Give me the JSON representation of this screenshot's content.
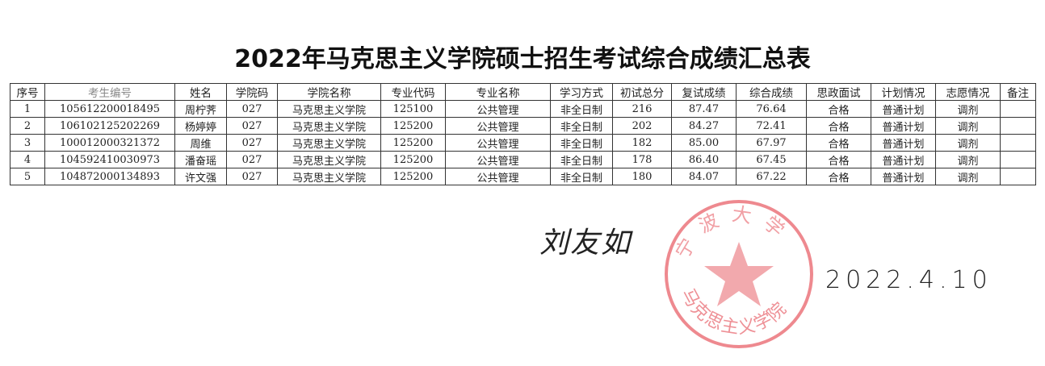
{
  "title": "2022年马克思主义学院硕士招生考试综合成绩汇总表",
  "table": {
    "headers": [
      "序号",
      "考生编号",
      "姓名",
      "学院码",
      "学院名称",
      "专业代码",
      "专业名称",
      "学习方式",
      "初试总分",
      "复试成绩",
      "综合成绩",
      "思政面试",
      "计划情况",
      "志愿情况",
      "备注"
    ],
    "rows": [
      [
        "1",
        "105612200018495",
        "周柠荠",
        "027",
        "马克思主义学院",
        "125100",
        "公共管理",
        "非全日制",
        "216",
        "87.47",
        "76.64",
        "合格",
        "普通计划",
        "调剂",
        ""
      ],
      [
        "2",
        "106102125202269",
        "杨婷婷",
        "027",
        "马克思主义学院",
        "125200",
        "公共管理",
        "非全日制",
        "202",
        "84.27",
        "72.41",
        "合格",
        "普通计划",
        "调剂",
        ""
      ],
      [
        "3",
        "100012000321372",
        "周维",
        "027",
        "马克思主义学院",
        "125200",
        "公共管理",
        "非全日制",
        "182",
        "85.00",
        "67.97",
        "合格",
        "普通计划",
        "调剂",
        ""
      ],
      [
        "4",
        "104592410030973",
        "潘奋瑶",
        "027",
        "马克思主义学院",
        "125200",
        "公共管理",
        "非全日制",
        "178",
        "86.40",
        "67.45",
        "合格",
        "普通计划",
        "调剂",
        ""
      ],
      [
        "5",
        "104872000134893",
        "许文强",
        "027",
        "马克思主义学院",
        "125200",
        "公共管理",
        "非全日制",
        "180",
        "84.07",
        "67.22",
        "合格",
        "普通计划",
        "调剂",
        ""
      ]
    ]
  },
  "seal": {
    "top_text": "宁波大学",
    "bottom_text": "马克思主义学院",
    "color": "#e8626a"
  },
  "signature": "刘友如",
  "date": "2022.4.10"
}
